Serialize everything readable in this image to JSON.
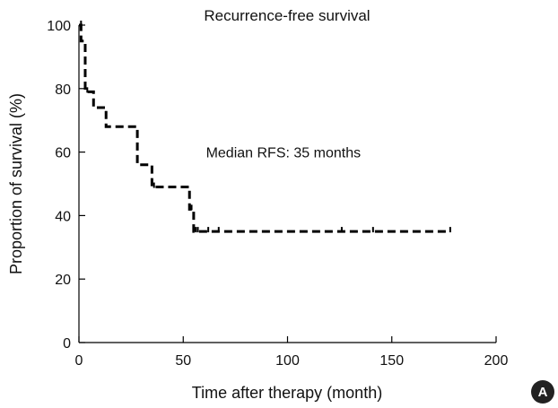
{
  "chart_data": {
    "type": "line",
    "title": "Recurrence-free survival",
    "xlabel": "Time after therapy (month)",
    "ylabel": "Proportion of survival (%)",
    "xlim": [
      0,
      200
    ],
    "ylim": [
      0,
      100
    ],
    "x_ticks": [
      0,
      50,
      100,
      150,
      200
    ],
    "y_ticks": [
      0,
      20,
      40,
      60,
      80,
      100
    ],
    "grid": false,
    "series": [
      {
        "style": "dashed",
        "color": "#000000",
        "steps": [
          {
            "x": 0,
            "y": 100
          },
          {
            "x": 1,
            "y": 95
          },
          {
            "x": 3,
            "y": 79
          },
          {
            "x": 7,
            "y": 74
          },
          {
            "x": 13,
            "y": 68
          },
          {
            "x": 28,
            "y": 56
          },
          {
            "x": 35,
            "y": 49
          },
          {
            "x": 53,
            "y": 42
          },
          {
            "x": 55,
            "y": 35
          },
          {
            "x": 178,
            "y": 35
          }
        ],
        "censored": [
          {
            "x": 1,
            "y": 100
          },
          {
            "x": 4,
            "y": 79
          },
          {
            "x": 36,
            "y": 49
          },
          {
            "x": 54,
            "y": 42
          },
          {
            "x": 56,
            "y": 35
          },
          {
            "x": 57,
            "y": 35
          },
          {
            "x": 62,
            "y": 35
          },
          {
            "x": 67,
            "y": 35
          },
          {
            "x": 126,
            "y": 35
          },
          {
            "x": 141,
            "y": 35
          },
          {
            "x": 178,
            "y": 35
          }
        ]
      }
    ],
    "annotations": [
      {
        "text": "Median RFS: 35 months",
        "x": 98,
        "y": 60
      }
    ]
  },
  "panel_badge": {
    "label": "A",
    "color": "#222222"
  }
}
